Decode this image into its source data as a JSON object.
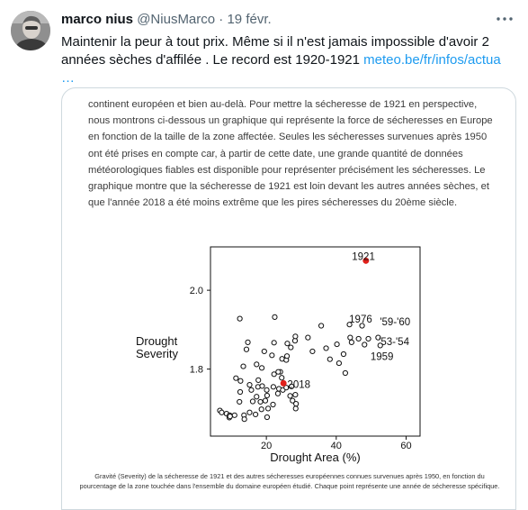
{
  "tweet": {
    "author_name": "marco nius",
    "author_handle": "@NiusMarco",
    "separator": "·",
    "date": "19 févr.",
    "text": "Maintenir la peur à tout prix. Même si il n'est jamais impossible d'avoir 2 années sèches d'affilée . Le record est 1920-1921 ",
    "link": "meteo.be/fr/infos/actua",
    "ellipsis": "…",
    "icons": {
      "avatar": "avatar-photo",
      "more": "more-options-icon"
    }
  },
  "article": {
    "paragraph": "continent européen et bien au-delà. Pour mettre la sécheresse de 1921 en perspective, nous montrons ci-dessous un graphique qui représente la force de sécheresses en Europe en fonction de la taille de la zone affectée. Seules les sécheresses survenues après 1950 ont été prises en compte car, à partir de cette date, une grande quantité de données météorologiques fiables est disponible pour représenter précisément les sécheresses. Le graphique montre que la sécheresse de 1921 est loin devant les autres années sèches, et que l'année 2018 a été moins extrême que les pires sécheresses du 20ème siècle.",
    "caption": "Gravité (Severity) de la sécheresse de 1921 et des autres sécheresses européennes connues survenues après 1950, en fonction du pourcentage de la zone touchée dans l'ensemble du domaine européen étudié. Chaque point représente une année de sécheresse spécifique."
  },
  "chart_data": {
    "type": "scatter",
    "xlabel": "Drought Area (%)",
    "ylabel_lines": [
      "Drought",
      "Severity"
    ],
    "xlim": [
      4,
      64
    ],
    "ylim": [
      1.63,
      2.11
    ],
    "xticks": [
      20,
      40,
      60
    ],
    "yticks": [
      1.8,
      2.0
    ],
    "ytick_labels": [
      "1.8",
      "2.0"
    ],
    "grid": false,
    "highlight_color": "#e0201b",
    "highlighted": [
      {
        "label": "1921",
        "x": 48.5,
        "y": 2.075
      },
      {
        "label": "2018",
        "x": 24.9,
        "y": 1.764
      }
    ],
    "annotations": [
      {
        "label": "1976",
        "x": 43.7,
        "y": 1.927
      },
      {
        "label": "'59-'60",
        "x": 52.5,
        "y": 1.92
      },
      {
        "label": "'53-'54",
        "x": 52.2,
        "y": 1.87
      },
      {
        "label": "1959",
        "x": 49.8,
        "y": 1.832
      },
      {
        "label": "2018",
        "x": 26.0,
        "y": 1.761
      },
      {
        "label": "1921",
        "x": 44.5,
        "y": 2.086
      }
    ],
    "points": [
      [
        6.7,
        1.695
      ],
      [
        7.2,
        1.69
      ],
      [
        8.6,
        1.687
      ],
      [
        9.5,
        1.683
      ],
      [
        9.4,
        1.677
      ],
      [
        10.9,
        1.683
      ],
      [
        12.3,
        1.717
      ],
      [
        12.5,
        1.742
      ],
      [
        13.6,
        1.683
      ],
      [
        13.7,
        1.673
      ],
      [
        12.6,
        1.77
      ],
      [
        11.3,
        1.777
      ],
      [
        13.4,
        1.807
      ],
      [
        15.2,
        1.76
      ],
      [
        15.7,
        1.747
      ],
      [
        16.1,
        1.718
      ],
      [
        16.9,
        1.685
      ],
      [
        17.2,
        1.73
      ],
      [
        17.6,
        1.755
      ],
      [
        17.7,
        1.772
      ],
      [
        18.3,
        1.717
      ],
      [
        18.6,
        1.698
      ],
      [
        18.8,
        1.757
      ],
      [
        19.7,
        1.72
      ],
      [
        20.2,
        1.733
      ],
      [
        20.5,
        1.7
      ],
      [
        20.1,
        1.747
      ],
      [
        22.0,
        1.755
      ],
      [
        22.2,
        1.787
      ],
      [
        23.3,
        1.738
      ],
      [
        23.6,
        1.75
      ],
      [
        24.0,
        1.793
      ],
      [
        24.7,
        1.747
      ],
      [
        25.7,
        1.753
      ],
      [
        26.8,
        1.732
      ],
      [
        27.5,
        1.72
      ],
      [
        27.2,
        1.756
      ],
      [
        28.3,
        1.735
      ],
      [
        28.5,
        1.712
      ],
      [
        28.4,
        1.7
      ],
      [
        12.4,
        1.928
      ],
      [
        14.7,
        1.868
      ],
      [
        14.3,
        1.85
      ],
      [
        17.2,
        1.812
      ],
      [
        18.7,
        1.803
      ],
      [
        19.4,
        1.845
      ],
      [
        21.6,
        1.835
      ],
      [
        22.2,
        1.867
      ],
      [
        22.4,
        1.932
      ],
      [
        23.4,
        1.793
      ],
      [
        24.5,
        1.826
      ],
      [
        25.7,
        1.823
      ],
      [
        25.9,
        1.833
      ],
      [
        27.0,
        1.855
      ],
      [
        26.0,
        1.865
      ],
      [
        28.2,
        1.872
      ],
      [
        28.3,
        1.883
      ],
      [
        31.9,
        1.88
      ],
      [
        35.7,
        1.91
      ],
      [
        33.2,
        1.845
      ],
      [
        37.1,
        1.853
      ],
      [
        38.2,
        1.825
      ],
      [
        40.2,
        1.863
      ],
      [
        40.8,
        1.815
      ],
      [
        42.1,
        1.838
      ],
      [
        42.6,
        1.79
      ],
      [
        44.0,
        1.88
      ],
      [
        44.4,
        1.868
      ],
      [
        46.4,
        1.877
      ],
      [
        48.1,
        1.862
      ],
      [
        49.2,
        1.877
      ],
      [
        52.0,
        1.88
      ],
      [
        52.6,
        1.86
      ],
      [
        43.8,
        1.913
      ],
      [
        47.4,
        1.91
      ],
      [
        21.9,
        1.71
      ],
      [
        20.2,
        1.678
      ],
      [
        9.6,
        1.68
      ],
      [
        15.2,
        1.69
      ],
      [
        24.4,
        1.778
      ]
    ]
  }
}
